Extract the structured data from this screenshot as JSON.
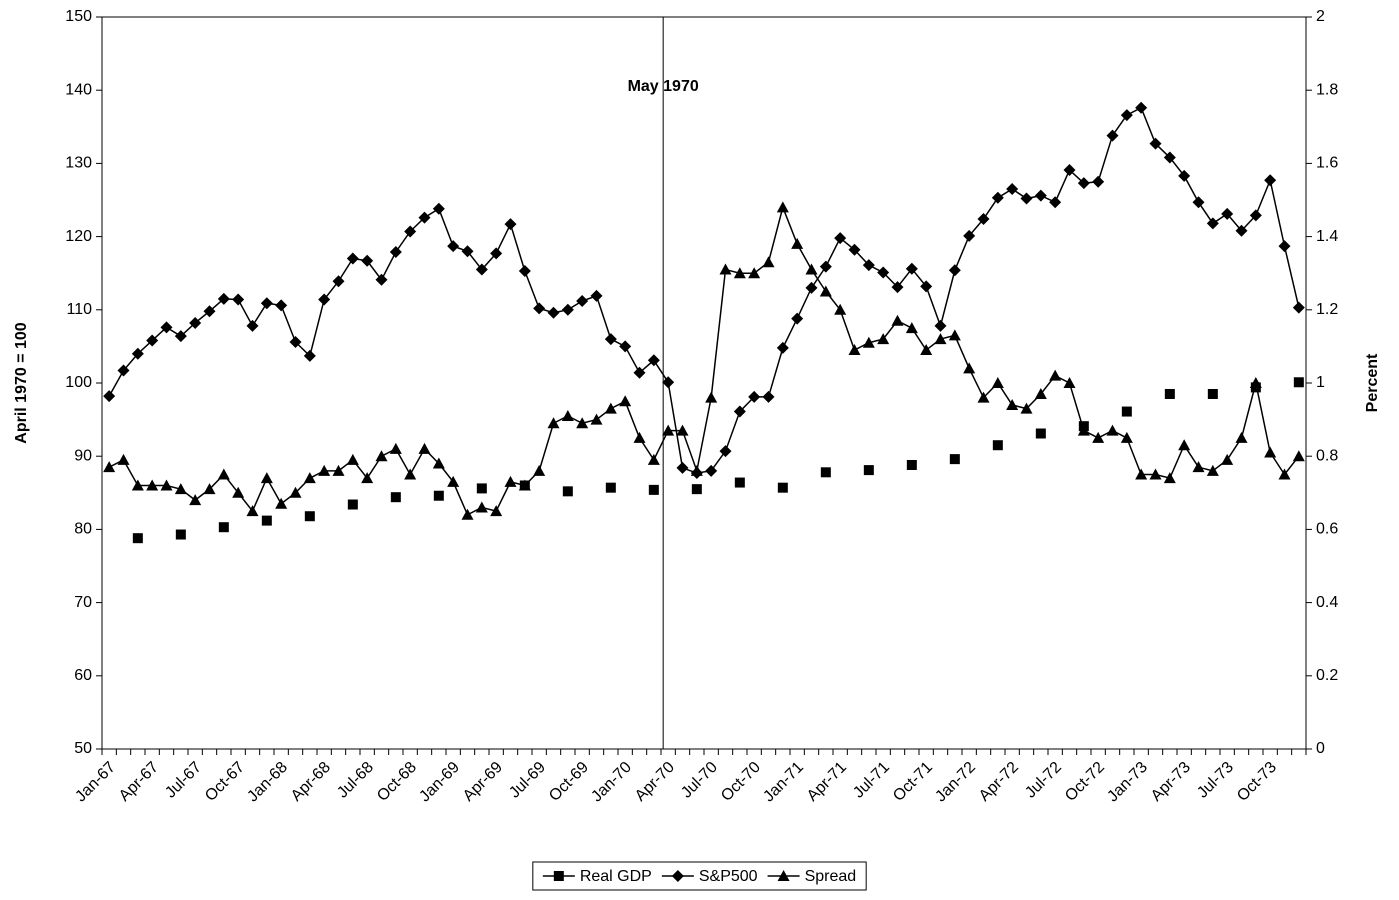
{
  "chart_data": {
    "type": "line",
    "annotation": "May 1970",
    "y_label": "April 1970 = 100",
    "y2_label": "Percent",
    "categories": [
      "Jan-67",
      null,
      null,
      "Apr-67",
      null,
      null,
      "Jul-67",
      null,
      null,
      "Oct-67",
      null,
      null,
      "Jan-68",
      null,
      null,
      "Apr-68",
      null,
      null,
      "Jul-68",
      null,
      null,
      "Oct-68",
      null,
      null,
      "Jan-69",
      null,
      null,
      "Apr-69",
      null,
      null,
      "Jul-69",
      null,
      null,
      "Oct-69",
      null,
      null,
      "Jan-70",
      null,
      null,
      "Apr-70",
      null,
      null,
      "Jul-70",
      null,
      null,
      "Oct-70",
      null,
      null,
      "Jan-71",
      null,
      null,
      "Apr-71",
      null,
      null,
      "Jul-71",
      null,
      null,
      "Oct-71",
      null,
      null,
      "Jan-72",
      null,
      null,
      "Apr-72",
      null,
      null,
      "Jul-72",
      null,
      null,
      "Oct-72",
      null,
      null,
      "Jan-73",
      null,
      null,
      "Apr-73",
      null,
      null,
      "Jul-73",
      null,
      null,
      "Oct-73",
      null,
      null
    ],
    "series": [
      {
        "name": "Real GDP",
        "color": "#000000",
        "marker": "square",
        "show_line": false,
        "axis": "y",
        "values": [
          null,
          null,
          78.8,
          null,
          null,
          79.3,
          null,
          null,
          80.3,
          null,
          null,
          81.2,
          null,
          null,
          81.8,
          null,
          null,
          83.4,
          null,
          null,
          84.4,
          null,
          null,
          84.6,
          null,
          null,
          85.6,
          null,
          null,
          86,
          null,
          null,
          85.2,
          null,
          null,
          85.7,
          null,
          null,
          85.4,
          null,
          null,
          85.5,
          null,
          null,
          86.4,
          null,
          null,
          85.7,
          null,
          null,
          87.8,
          null,
          null,
          88.1,
          null,
          null,
          88.8,
          null,
          null,
          89.6,
          null,
          null,
          91.5,
          null,
          null,
          93.1,
          null,
          null,
          94.1,
          null,
          null,
          96.1,
          null,
          null,
          98.5,
          null,
          null,
          98.5,
          null,
          null,
          99.4,
          null,
          null,
          100.1
        ]
      },
      {
        "name": "S&P500",
        "color": "#000000",
        "marker": "diamond",
        "show_line": true,
        "axis": "y",
        "values": [
          98.2,
          101.7,
          104,
          105.8,
          107.6,
          106.4,
          108.2,
          109.8,
          111.5,
          111.4,
          107.8,
          110.9,
          110.6,
          105.6,
          103.7,
          111.4,
          113.9,
          117,
          116.7,
          114.1,
          117.9,
          120.7,
          122.6,
          123.8,
          118.7,
          118,
          115.5,
          117.7,
          121.7,
          115.3,
          110.2,
          109.6,
          110,
          111.2,
          111.9,
          106,
          105,
          101.4,
          103.1,
          100.1,
          88.4,
          87.7,
          88,
          90.7,
          96.1,
          98.1,
          98.1,
          104.8,
          108.8,
          113,
          115.9,
          119.8,
          118.2,
          116.1,
          115.1,
          113.1,
          115.6,
          113.2,
          107.8,
          115.4,
          120.1,
          122.4,
          125.3,
          126.5,
          125.2,
          125.6,
          124.7,
          129.1,
          127.3,
          127.5,
          133.8,
          136.6,
          137.6,
          132.7,
          130.8,
          128.3,
          124.7,
          121.8,
          123.1,
          120.8,
          122.9,
          127.7,
          118.7,
          110.3
        ]
      },
      {
        "name": "Spread",
        "color": "#000000",
        "marker": "triangle",
        "show_line": true,
        "axis": "y2",
        "values": [
          0.77,
          0.79,
          0.72,
          0.72,
          0.72,
          0.71,
          0.68,
          0.71,
          0.75,
          0.7,
          0.65,
          0.74,
          0.67,
          0.7,
          0.74,
          0.76,
          0.76,
          0.79,
          0.74,
          0.8,
          0.82,
          0.75,
          0.82,
          0.78,
          0.73,
          0.64,
          0.66,
          0.65,
          0.73,
          0.72,
          0.76,
          0.89,
          0.91,
          0.89,
          0.9,
          0.93,
          0.95,
          0.85,
          0.79,
          0.87,
          0.87,
          0.76,
          0.96,
          1.31,
          1.3,
          1.3,
          1.33,
          1.48,
          1.38,
          1.31,
          1.25,
          1.2,
          1.09,
          1.11,
          1.12,
          1.17,
          1.15,
          1.09,
          1.12,
          1.13,
          1.04,
          0.96,
          1,
          0.94,
          0.93,
          0.97,
          1.02,
          1,
          0.87,
          0.85,
          0.87,
          0.85,
          0.75,
          0.75,
          0.74,
          0.83,
          0.77,
          0.76,
          0.79,
          0.85,
          1,
          0.81,
          0.75,
          0.8
        ]
      }
    ],
    "ylim": [
      50,
      150
    ],
    "yticks": [
      50,
      60,
      70,
      80,
      90,
      100,
      110,
      120,
      130,
      140,
      150
    ],
    "y2lim": [
      0,
      2
    ],
    "y2ticks": [
      0,
      0.2,
      0.4,
      0.6,
      0.8,
      1,
      1.2,
      1.4,
      1.6,
      1.8,
      2
    ],
    "grid": false,
    "legend": "bottom"
  }
}
